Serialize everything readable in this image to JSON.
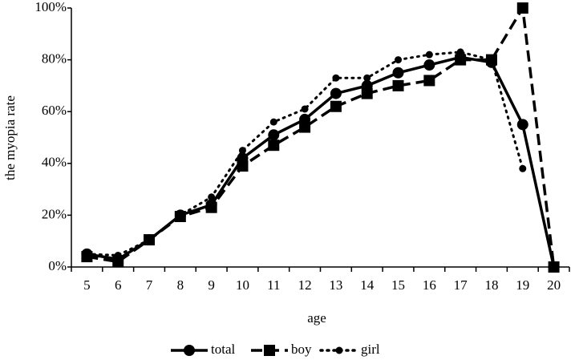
{
  "chart_data": {
    "type": "line",
    "x_label": "age",
    "y_label": "the myopia rate",
    "categories": [
      "5",
      "6",
      "7",
      "8",
      "9",
      "10",
      "11",
      "12",
      "13",
      "14",
      "15",
      "16",
      "17",
      "18",
      "19",
      "20"
    ],
    "ylim": [
      0,
      100
    ],
    "yticks": [
      {
        "value": 0,
        "label": "0%"
      },
      {
        "value": 20,
        "label": "20%"
      },
      {
        "value": 40,
        "label": "40%"
      },
      {
        "value": 60,
        "label": "60%"
      },
      {
        "value": 80,
        "label": "80%"
      },
      {
        "value": 100,
        "label": "100%"
      }
    ],
    "grid": false,
    "legend": "bottom",
    "series": [
      {
        "name": "total",
        "color": "#000000",
        "line_style": "solid",
        "marker": "circle",
        "values": [
          5,
          3,
          10.5,
          20,
          24,
          42,
          51,
          57,
          67,
          70,
          75,
          78,
          81,
          79,
          55,
          0
        ]
      },
      {
        "name": "boy",
        "color": "#000000",
        "line_style": "dashed",
        "marker": "square",
        "values": [
          4,
          2,
          10.5,
          19.5,
          23,
          39,
          47,
          54,
          62,
          67,
          70,
          72,
          80,
          80,
          100,
          0
        ]
      },
      {
        "name": "girl",
        "color": "#000000",
        "line_style": "dotted",
        "marker": "small-circle",
        "values": [
          5,
          4.5,
          10.5,
          20,
          27,
          45,
          56,
          61,
          73,
          73,
          80,
          82,
          83,
          80,
          38,
          null
        ]
      }
    ]
  }
}
